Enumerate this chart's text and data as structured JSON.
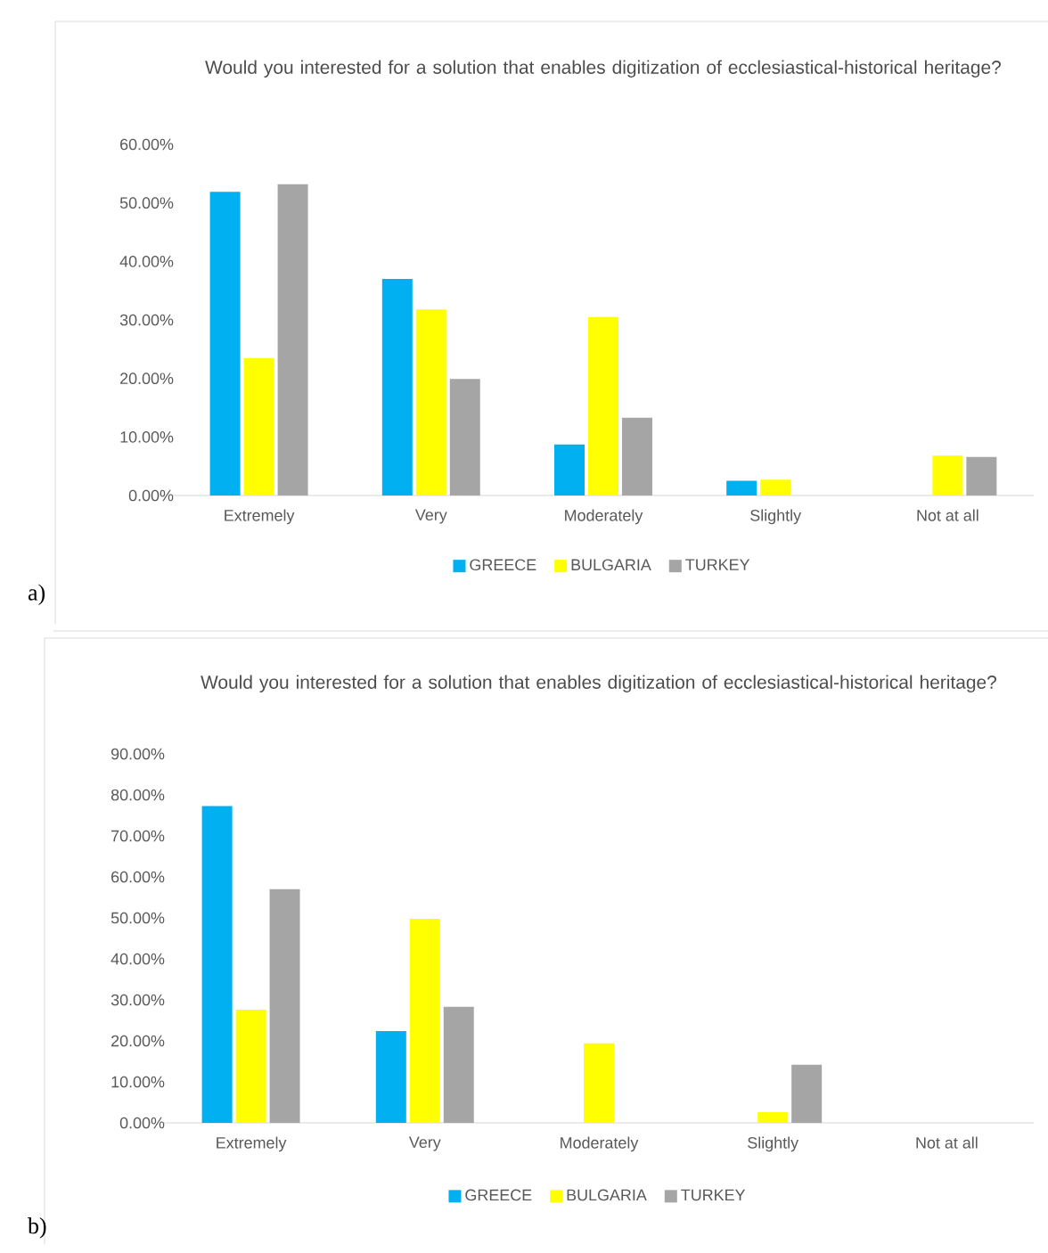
{
  "chart_data": [
    {
      "type": "bar",
      "title": "Would you interested for a solution that enables digitization of ecclesiastical-historical heritage?",
      "categories": [
        "Extremely",
        "Very",
        "Moderately",
        "Slightly",
        "Not at all"
      ],
      "series": [
        {
          "name": "GREECE",
          "color": "#00b0f0",
          "values": [
            51.9,
            37.0,
            8.7,
            2.5,
            0
          ]
        },
        {
          "name": "BULGARIA",
          "color": "#ffff00",
          "values": [
            23.5,
            31.8,
            30.5,
            2.7,
            6.8
          ]
        },
        {
          "name": "TURKEY",
          "color": "#a5a5a5",
          "values": [
            53.2,
            19.9,
            13.3,
            0,
            6.6
          ]
        }
      ],
      "ylim": [
        0,
        60
      ],
      "yticks": [
        {
          "value": 0,
          "label": "0.00%"
        },
        {
          "value": 10,
          "label": "10.00%"
        },
        {
          "value": 20,
          "label": "20.00%"
        },
        {
          "value": 30,
          "label": "30.00%"
        },
        {
          "value": 40,
          "label": "40.00%"
        },
        {
          "value": 50,
          "label": "50.00%"
        },
        {
          "value": 60,
          "label": "60.00%"
        }
      ],
      "legend": "bottom",
      "annotations": [
        "a)"
      ]
    },
    {
      "type": "bar",
      "title": "Would you interested for a solution that enables digitization of ecclesiastical-historical heritage?",
      "categories": [
        "Extremely",
        "Very",
        "Moderately",
        "Slightly",
        "Not at all"
      ],
      "series": [
        {
          "name": "GREECE",
          "color": "#00b0f0",
          "values": [
            77.3,
            22.4,
            0,
            0,
            0
          ]
        },
        {
          "name": "BULGARIA",
          "color": "#ffff00",
          "values": [
            27.6,
            49.8,
            19.4,
            2.6,
            0
          ]
        },
        {
          "name": "TURKEY",
          "color": "#a5a5a5",
          "values": [
            57.0,
            28.3,
            0,
            14.2,
            0
          ]
        }
      ],
      "ylim": [
        0,
        90
      ],
      "yticks": [
        {
          "value": 0,
          "label": "0.00%"
        },
        {
          "value": 10,
          "label": "10.00%"
        },
        {
          "value": 20,
          "label": "20.00%"
        },
        {
          "value": 30,
          "label": "30.00%"
        },
        {
          "value": 40,
          "label": "40.00%"
        },
        {
          "value": 50,
          "label": "50.00%"
        },
        {
          "value": 60,
          "label": "60.00%"
        },
        {
          "value": 70,
          "label": "70.00%"
        },
        {
          "value": 80,
          "label": "80.00%"
        },
        {
          "value": 90,
          "label": "90.00%"
        }
      ],
      "legend": "bottom",
      "annotations": [
        "b)"
      ]
    }
  ]
}
